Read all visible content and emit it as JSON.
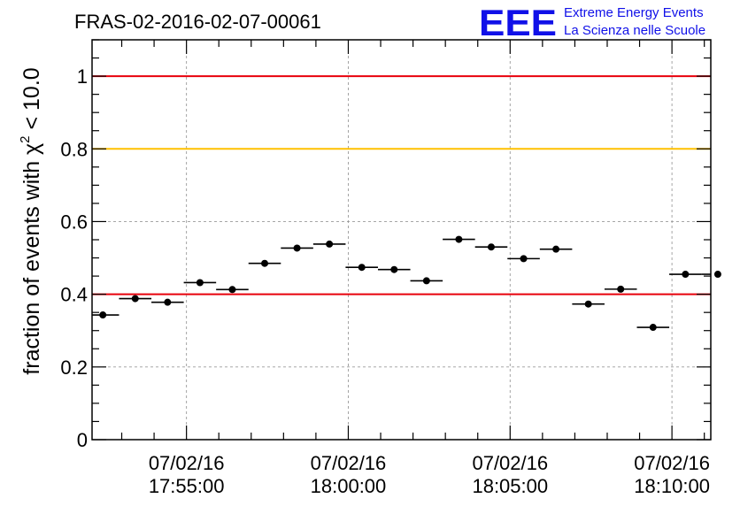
{
  "chart_data": {
    "type": "scatter",
    "title": "FRAS-02-2016-02-07-00061",
    "ylabel": "fraction of events with",
    "ylabel_chi": "χ",
    "ylabel_sup": "2",
    "ylabel_tail": " < 10.0",
    "ylim": [
      0,
      1.1
    ],
    "xlim": [
      "2016-02-07 17:52:05",
      "2016-02-07 18:11:12"
    ],
    "x_ticks": [
      {
        "x": "2016-02-07 17:55:00",
        "date": "07/02/16",
        "time": "17:55:00"
      },
      {
        "x": "2016-02-07 18:00:00",
        "date": "07/02/16",
        "time": "18:00:00"
      },
      {
        "x": "2016-02-07 18:05:00",
        "date": "07/02/16",
        "time": "18:05:00"
      },
      {
        "x": "2016-02-07 18:10:00",
        "date": "07/02/16",
        "time": "18:10:00"
      }
    ],
    "y_ticks": [
      "0",
      "0.2",
      "0.4",
      "0.6",
      "0.8",
      "1"
    ],
    "y_tick_values": [
      0,
      0.2,
      0.4,
      0.6,
      0.8,
      1.0
    ],
    "grid": true,
    "reference_lines": [
      {
        "y": 1.0,
        "color": "#e8000b"
      },
      {
        "y": 0.8,
        "color": "#ffc000"
      },
      {
        "y": 0.4,
        "color": "#e8000b"
      }
    ],
    "bin_width_seconds": 60,
    "series": [
      {
        "x": [
          "17:52:25",
          "17:53:25",
          "17:54:25",
          "17:55:25",
          "17:56:25",
          "17:57:25",
          "17:58:25",
          "17:59:25",
          "18:00:25",
          "18:01:25",
          "18:02:25",
          "18:03:25",
          "18:04:25",
          "18:05:25",
          "18:06:25",
          "18:07:25",
          "18:08:25",
          "18:09:25",
          "18:10:25",
          "18:11:25"
        ],
        "y": [
          0.343,
          0.388,
          0.378,
          0.432,
          0.413,
          0.485,
          0.527,
          0.538,
          0.474,
          0.468,
          0.437,
          0.551,
          0.53,
          0.498,
          0.524,
          0.373,
          0.414,
          0.309,
          0.455,
          0.455
        ]
      }
    ]
  },
  "logo": {
    "mark": "EEE",
    "line1": "Extreme Energy Events",
    "line2": "La Scienza nelle Scuole",
    "color": "#1010e8"
  }
}
